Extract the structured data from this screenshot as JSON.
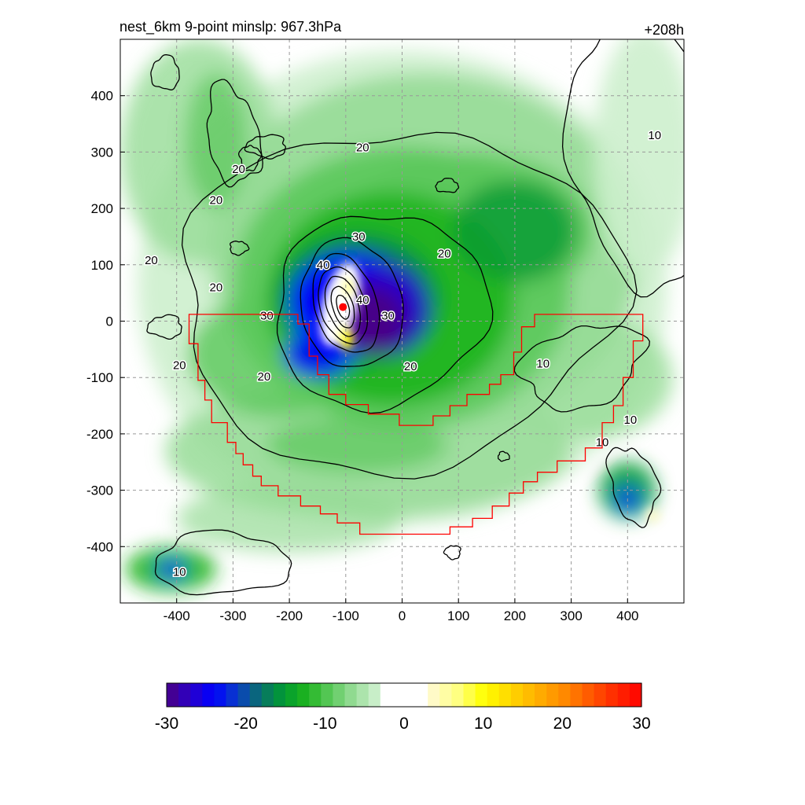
{
  "header": {
    "title": "nest_6km  9-point minslp: 967.3hPa",
    "lead_time": "+208h"
  },
  "colors": {
    "negative_scale": [
      "#4b0082",
      "#2a00c8",
      "#0000ff",
      "#0a3cc8",
      "#0a6e6e",
      "#009a32",
      "#1eb41e",
      "#5ac85a",
      "#96dc96",
      "#cdf0cd"
    ],
    "positive_scale": [
      "#fffacd",
      "#ffff80",
      "#ffff00",
      "#ffd700",
      "#ffb000",
      "#ff8c00",
      "#ff5a00",
      "#ff2a00",
      "#ff0000"
    ],
    "contour": "#000000",
    "boundary": "#ff0000",
    "storm_center": "#ff0000",
    "grid": "#999999"
  },
  "chart_data": {
    "type": "heatmap",
    "title": "nest_6km  9-point minslp: 967.3hPa",
    "xlabel": "",
    "ylabel": "",
    "xlim": [
      -500,
      500
    ],
    "ylim": [
      -500,
      500
    ],
    "x_ticks": [
      -400,
      -300,
      -200,
      -100,
      0,
      100,
      200,
      300,
      400
    ],
    "y_ticks": [
      -400,
      -300,
      -200,
      -100,
      0,
      100,
      200,
      300,
      400
    ],
    "grid": true,
    "storm_center": {
      "x": -105,
      "y": 25
    },
    "colorbar": {
      "min": -30,
      "max": 30,
      "ticks": [
        -30,
        -20,
        -10,
        0,
        10,
        20,
        30
      ],
      "levels": 40
    },
    "contour_labels": [
      {
        "text": "20",
        "x": -70,
        "y": 308
      },
      {
        "text": "20",
        "x": -290,
        "y": 270
      },
      {
        "text": "20",
        "x": -330,
        "y": 215
      },
      {
        "text": "20",
        "x": -445,
        "y": 108
      },
      {
        "text": "20",
        "x": -330,
        "y": 60
      },
      {
        "text": "30",
        "x": -240,
        "y": 10
      },
      {
        "text": "30",
        "x": -77,
        "y": 150
      },
      {
        "text": "40",
        "x": -140,
        "y": 100
      },
      {
        "text": "40",
        "x": -70,
        "y": 38
      },
      {
        "text": "20",
        "x": 75,
        "y": 120
      },
      {
        "text": "20",
        "x": 15,
        "y": -80
      },
      {
        "text": "30",
        "x": -25,
        "y": 10
      },
      {
        "text": "20",
        "x": -395,
        "y": -78
      },
      {
        "text": "20",
        "x": -245,
        "y": -98
      },
      {
        "text": "10",
        "x": 250,
        "y": -75
      },
      {
        "text": "10",
        "x": 405,
        "y": -175
      },
      {
        "text": "10",
        "x": 355,
        "y": -215
      },
      {
        "text": "10",
        "x": 448,
        "y": 330
      },
      {
        "text": "10",
        "x": -395,
        "y": -445
      }
    ],
    "boundary_polygon": [
      [
        -378,
        12
      ],
      [
        -378,
        -40
      ],
      [
        -362,
        -40
      ],
      [
        -362,
        -105
      ],
      [
        -350,
        -105
      ],
      [
        -350,
        -140
      ],
      [
        -338,
        -140
      ],
      [
        -338,
        -180
      ],
      [
        -310,
        -180
      ],
      [
        -310,
        -215
      ],
      [
        -295,
        -215
      ],
      [
        -295,
        -235
      ],
      [
        -282,
        -235
      ],
      [
        -282,
        -255
      ],
      [
        -265,
        -255
      ],
      [
        -265,
        -275
      ],
      [
        -250,
        -275
      ],
      [
        -250,
        -292
      ],
      [
        -220,
        -292
      ],
      [
        -220,
        -310
      ],
      [
        -180,
        -310
      ],
      [
        -180,
        -328
      ],
      [
        -145,
        -328
      ],
      [
        -145,
        -342
      ],
      [
        -115,
        -342
      ],
      [
        -115,
        -358
      ],
      [
        -75,
        -358
      ],
      [
        -75,
        -378
      ],
      [
        85,
        -378
      ],
      [
        85,
        -365
      ],
      [
        125,
        -365
      ],
      [
        125,
        -350
      ],
      [
        160,
        -350
      ],
      [
        160,
        -328
      ],
      [
        190,
        -328
      ],
      [
        190,
        -305
      ],
      [
        215,
        -305
      ],
      [
        215,
        -285
      ],
      [
        240,
        -285
      ],
      [
        240,
        -268
      ],
      [
        275,
        -268
      ],
      [
        275,
        -248
      ],
      [
        325,
        -248
      ],
      [
        325,
        -225
      ],
      [
        355,
        -225
      ],
      [
        355,
        -180
      ],
      [
        375,
        -180
      ],
      [
        375,
        -150
      ],
      [
        392,
        -150
      ],
      [
        392,
        -100
      ],
      [
        410,
        -100
      ],
      [
        410,
        -35
      ],
      [
        427,
        -35
      ],
      [
        427,
        12
      ],
      [
        235,
        12
      ],
      [
        235,
        -10
      ],
      [
        212,
        -10
      ],
      [
        212,
        -55
      ],
      [
        198,
        -55
      ],
      [
        198,
        -95
      ],
      [
        175,
        -95
      ],
      [
        175,
        -112
      ],
      [
        155,
        -112
      ],
      [
        155,
        -130
      ],
      [
        115,
        -130
      ],
      [
        115,
        -150
      ],
      [
        85,
        -150
      ],
      [
        85,
        -168
      ],
      [
        55,
        -168
      ],
      [
        55,
        -185
      ],
      [
        -5,
        -185
      ],
      [
        -5,
        -165
      ],
      [
        -60,
        -165
      ],
      [
        -60,
        -148
      ],
      [
        -100,
        -148
      ],
      [
        -100,
        -130
      ],
      [
        -130,
        -130
      ],
      [
        -130,
        -95
      ],
      [
        -150,
        -95
      ],
      [
        -150,
        -62
      ],
      [
        -165,
        -62
      ],
      [
        -165,
        -5
      ],
      [
        -185,
        -5
      ],
      [
        -185,
        12
      ]
    ]
  }
}
